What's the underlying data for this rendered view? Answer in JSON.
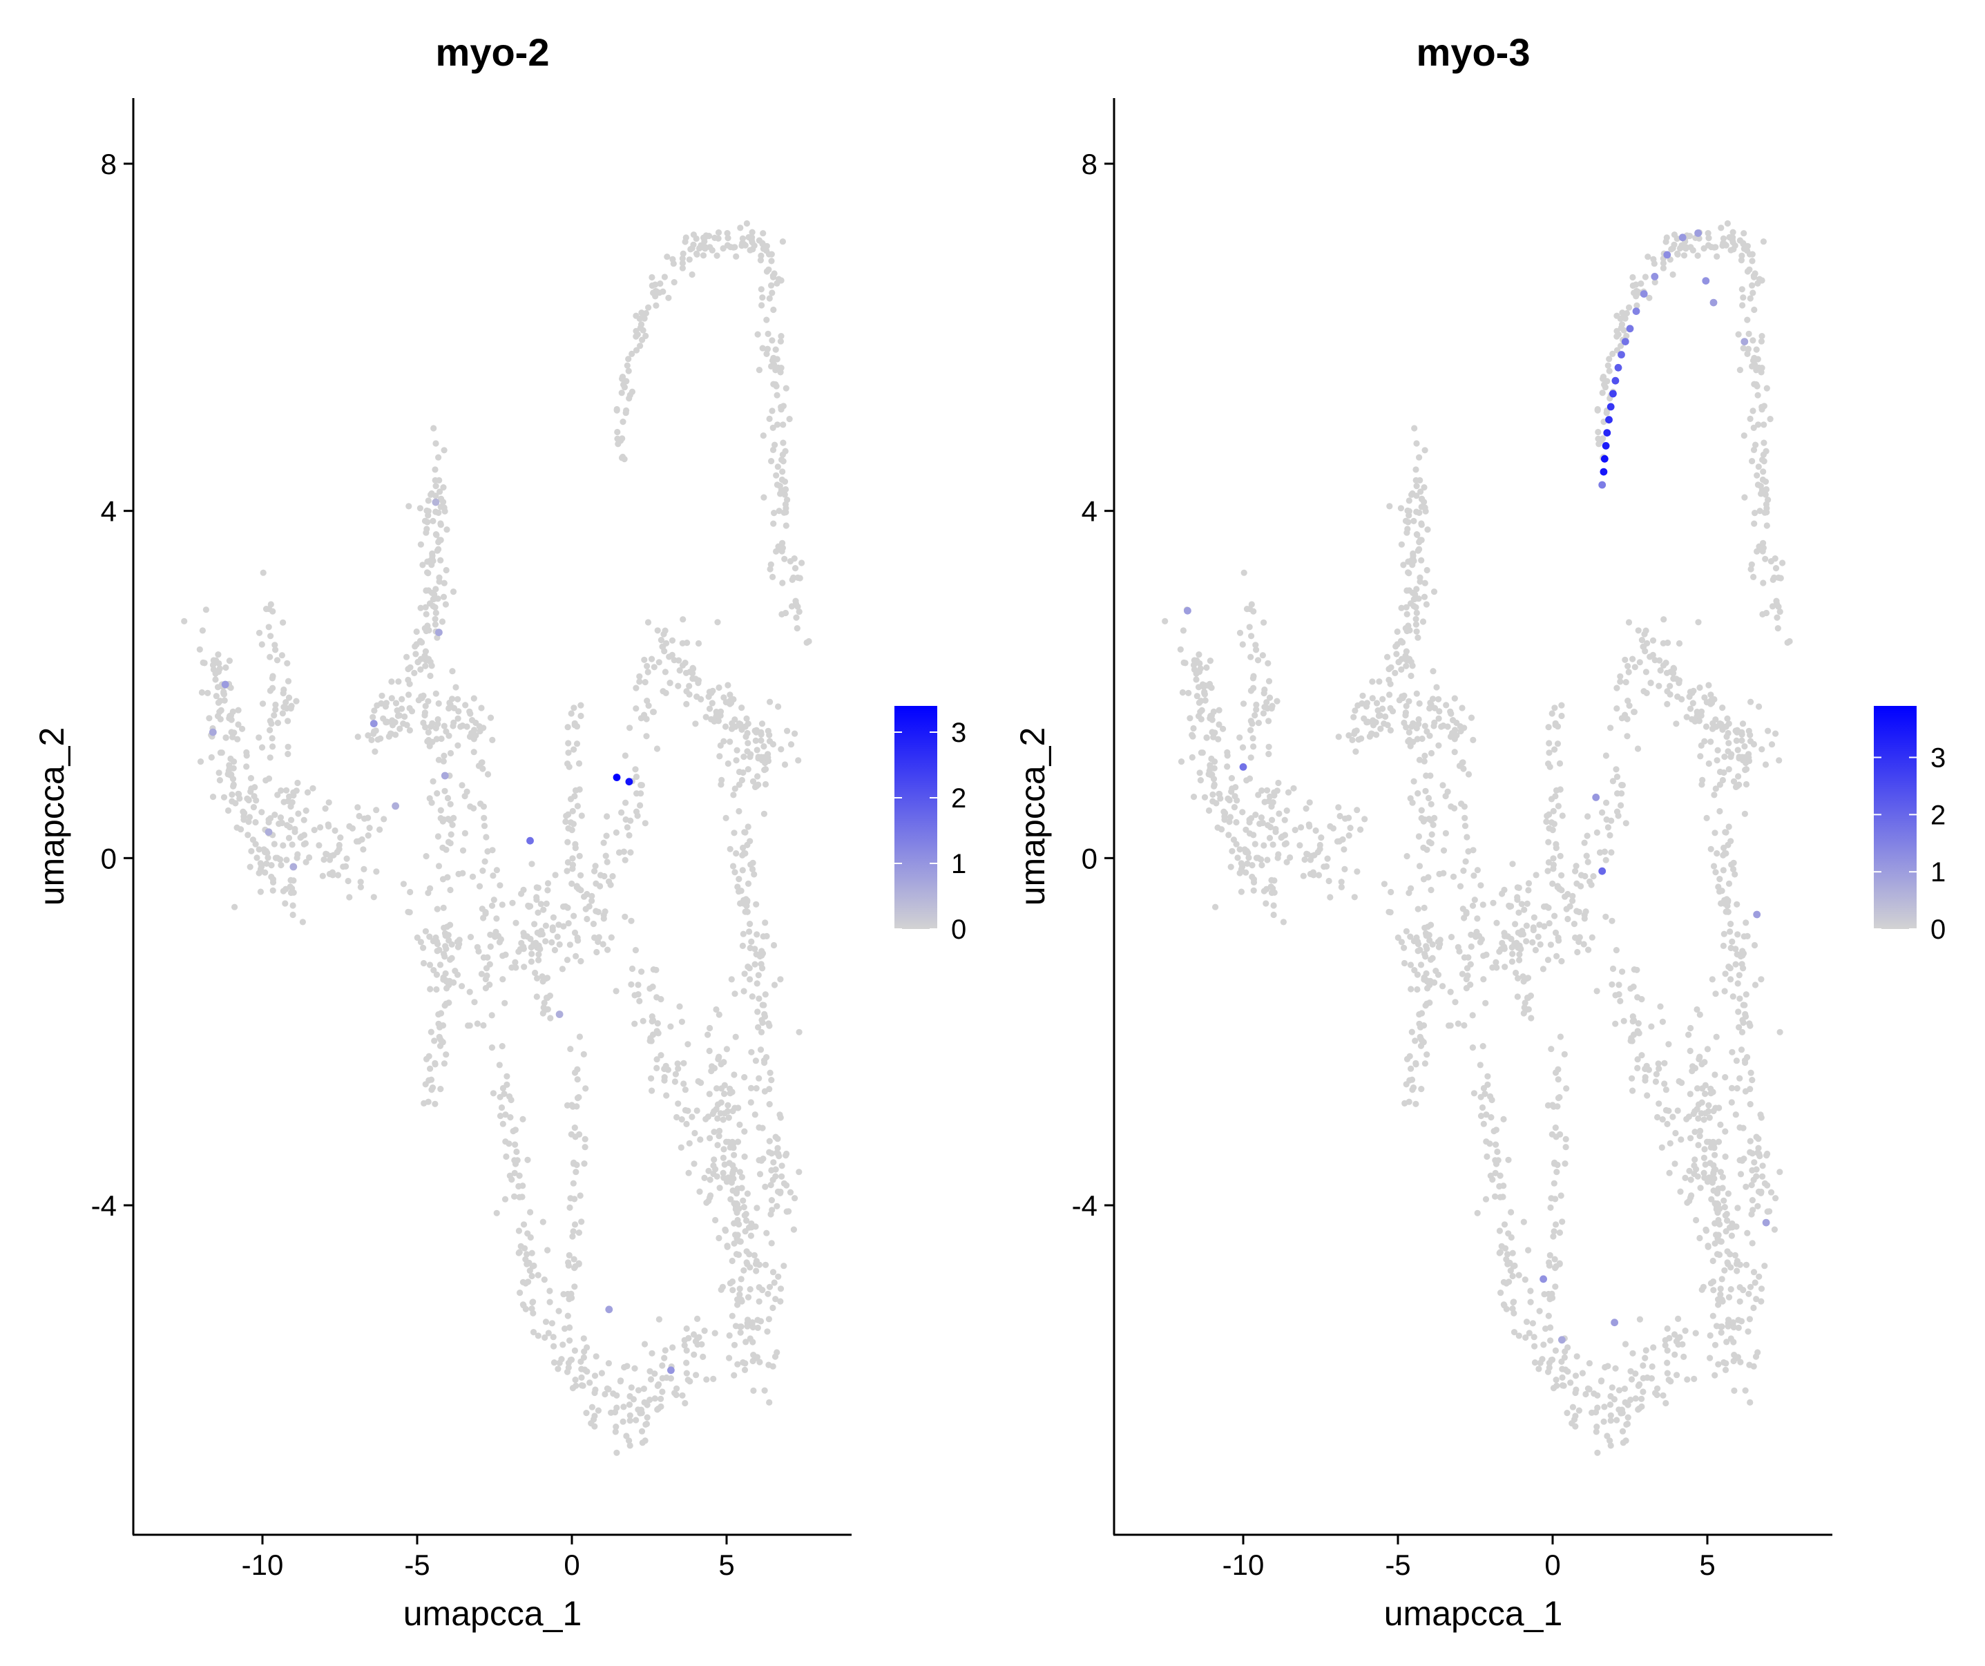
{
  "chart_data": [
    {
      "type": "scatter",
      "title": "myo-2",
      "xlabel": "umapcca_1",
      "ylabel": "umapcca_2",
      "xlim": [
        -14,
        9
      ],
      "ylim": [
        -7.6,
        8.8
      ],
      "x_ticks": [
        -10,
        -5,
        0,
        5
      ],
      "x_tick_labels": [
        "-10",
        "-5",
        "0",
        "5"
      ],
      "y_ticks": [
        -4,
        0,
        4,
        8
      ],
      "y_tick_labels": [
        "-4",
        "0",
        "4",
        "8"
      ],
      "grid": false,
      "legend_position": "right",
      "color_low": "#d3d3d3",
      "color_high": "#0000ff",
      "color_range": [
        0,
        3.4
      ],
      "legend_ticks": [
        0,
        1,
        2,
        3
      ],
      "legend_tick_labels": [
        "0",
        "1",
        "2",
        "3"
      ],
      "highlighted_points": [
        {
          "x": 1.45,
          "y": 0.93,
          "value": 3.4
        },
        {
          "x": 1.85,
          "y": 0.88,
          "value": 3.1
        },
        {
          "x": -1.35,
          "y": 0.2,
          "value": 1.6
        },
        {
          "x": -11.2,
          "y": 2.0,
          "value": 0.9
        },
        {
          "x": -11.6,
          "y": 1.45,
          "value": 0.7
        },
        {
          "x": -6.4,
          "y": 1.55,
          "value": 1.0
        },
        {
          "x": -4.3,
          "y": 2.6,
          "value": 0.7
        },
        {
          "x": -4.1,
          "y": 0.95,
          "value": 0.7
        },
        {
          "x": -5.7,
          "y": 0.6,
          "value": 0.6
        },
        {
          "x": -9.8,
          "y": 0.3,
          "value": 0.6
        },
        {
          "x": -9.0,
          "y": -0.1,
          "value": 0.6
        },
        {
          "x": -0.4,
          "y": -1.8,
          "value": 0.6
        },
        {
          "x": 1.2,
          "y": -5.2,
          "value": 0.8
        },
        {
          "x": 3.2,
          "y": -5.9,
          "value": 1.0
        },
        {
          "x": -4.4,
          "y": 4.1,
          "value": 0.5
        }
      ]
    },
    {
      "type": "scatter",
      "title": "myo-3",
      "xlabel": "umapcca_1",
      "ylabel": "umapcca_2",
      "xlim": [
        -14,
        9
      ],
      "ylim": [
        -7.6,
        8.8
      ],
      "x_ticks": [
        -10,
        -5,
        0,
        5
      ],
      "x_tick_labels": [
        "-10",
        "-5",
        "0",
        "5"
      ],
      "y_ticks": [
        -4,
        0,
        4,
        8
      ],
      "y_tick_labels": [
        "-4",
        "0",
        "4",
        "8"
      ],
      "grid": false,
      "legend_position": "right",
      "color_low": "#d3d3d3",
      "color_high": "#0000ff",
      "color_range": [
        0,
        3.9
      ],
      "legend_ticks": [
        0,
        1,
        2,
        3
      ],
      "legend_tick_labels": [
        "0",
        "1",
        "2",
        "3"
      ],
      "highlighted_points": [
        {
          "x": 1.65,
          "y": 4.45,
          "value": 3.5
        },
        {
          "x": 1.68,
          "y": 4.6,
          "value": 3.6
        },
        {
          "x": 1.72,
          "y": 4.75,
          "value": 3.4
        },
        {
          "x": 1.76,
          "y": 4.9,
          "value": 3.2
        },
        {
          "x": 1.82,
          "y": 5.05,
          "value": 3.0
        },
        {
          "x": 1.88,
          "y": 5.2,
          "value": 2.9
        },
        {
          "x": 1.95,
          "y": 5.35,
          "value": 2.7
        },
        {
          "x": 2.03,
          "y": 5.5,
          "value": 2.4
        },
        {
          "x": 2.12,
          "y": 5.65,
          "value": 2.2
        },
        {
          "x": 2.22,
          "y": 5.8,
          "value": 2.0
        },
        {
          "x": 2.35,
          "y": 5.95,
          "value": 1.8
        },
        {
          "x": 2.5,
          "y": 6.1,
          "value": 1.7
        },
        {
          "x": 2.7,
          "y": 6.3,
          "value": 1.5
        },
        {
          "x": 2.95,
          "y": 6.5,
          "value": 1.3
        },
        {
          "x": 3.3,
          "y": 6.7,
          "value": 1.2
        },
        {
          "x": 3.7,
          "y": 6.95,
          "value": 1.3
        },
        {
          "x": 4.2,
          "y": 7.15,
          "value": 1.1
        },
        {
          "x": 4.7,
          "y": 7.2,
          "value": 1.0
        },
        {
          "x": 4.95,
          "y": 6.65,
          "value": 1.2
        },
        {
          "x": 5.2,
          "y": 6.4,
          "value": 1.0
        },
        {
          "x": 1.6,
          "y": 4.3,
          "value": 1.6
        },
        {
          "x": 1.6,
          "y": -0.15,
          "value": 2.0
        },
        {
          "x": 1.4,
          "y": 0.7,
          "value": 1.1
        },
        {
          "x": -10.0,
          "y": 1.05,
          "value": 1.8
        },
        {
          "x": -11.8,
          "y": 2.85,
          "value": 1.0
        },
        {
          "x": 6.6,
          "y": -0.65,
          "value": 1.0
        },
        {
          "x": 6.9,
          "y": -4.2,
          "value": 0.9
        },
        {
          "x": -0.3,
          "y": -4.85,
          "value": 1.2
        },
        {
          "x": 2.0,
          "y": -5.35,
          "value": 1.0
        },
        {
          "x": 0.3,
          "y": -5.55,
          "value": 0.8
        },
        {
          "x": 6.2,
          "y": 5.95,
          "value": 0.8
        }
      ]
    }
  ]
}
